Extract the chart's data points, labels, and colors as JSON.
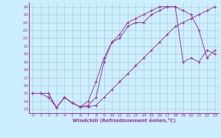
{
  "xlabel": "Windchill (Refroidissement éolien,°C)",
  "bg_color": "#cceeff",
  "grid_color": "#aacccc",
  "line_color": "#993399",
  "xlim": [
    -0.5,
    23.5
  ],
  "ylim": [
    12.5,
    26.5
  ],
  "xticks": [
    0,
    1,
    2,
    3,
    4,
    5,
    6,
    7,
    8,
    9,
    10,
    11,
    12,
    13,
    14,
    15,
    16,
    17,
    18,
    19,
    20,
    21,
    22,
    23
  ],
  "yticks": [
    13,
    14,
    15,
    16,
    17,
    18,
    19,
    20,
    21,
    22,
    23,
    24,
    25,
    26
  ],
  "curve1_x": [
    0,
    1,
    2,
    3,
    4,
    5,
    6,
    7,
    8,
    9,
    10,
    11,
    12,
    13,
    14,
    15,
    16,
    17,
    18,
    19,
    20,
    21,
    22,
    23
  ],
  "curve1_y": [
    15.0,
    15.0,
    14.5,
    13.2,
    14.5,
    13.8,
    13.3,
    13.3,
    13.5,
    14.5,
    15.5,
    16.5,
    17.5,
    18.5,
    19.5,
    20.5,
    21.5,
    22.5,
    23.5,
    24.0,
    24.5,
    25.0,
    25.5,
    26.0
  ],
  "curve2_x": [
    0,
    1,
    2,
    3,
    4,
    5,
    6,
    7,
    8,
    9,
    10,
    11,
    12,
    13,
    14,
    15,
    16,
    17,
    18,
    19,
    20,
    21,
    22,
    23
  ],
  "curve2_y": [
    15.0,
    15.0,
    15.0,
    13.2,
    14.5,
    13.8,
    13.3,
    14.0,
    16.5,
    19.5,
    21.5,
    22.5,
    24.0,
    24.5,
    25.0,
    25.5,
    26.0,
    26.0,
    26.0,
    25.5,
    25.0,
    23.0,
    19.5,
    20.5
  ],
  "curve3_x": [
    0,
    1,
    2,
    3,
    4,
    5,
    6,
    7,
    8,
    9,
    10,
    11,
    12,
    13,
    14,
    15,
    16,
    17,
    18,
    19,
    20,
    21,
    22,
    23
  ],
  "curve3_y": [
    15.0,
    15.0,
    15.0,
    13.2,
    14.5,
    13.8,
    13.3,
    13.5,
    14.5,
    19.0,
    21.5,
    22.0,
    23.5,
    24.0,
    24.0,
    25.0,
    25.5,
    26.0,
    26.0,
    19.0,
    19.5,
    19.0,
    20.5,
    20.0
  ]
}
